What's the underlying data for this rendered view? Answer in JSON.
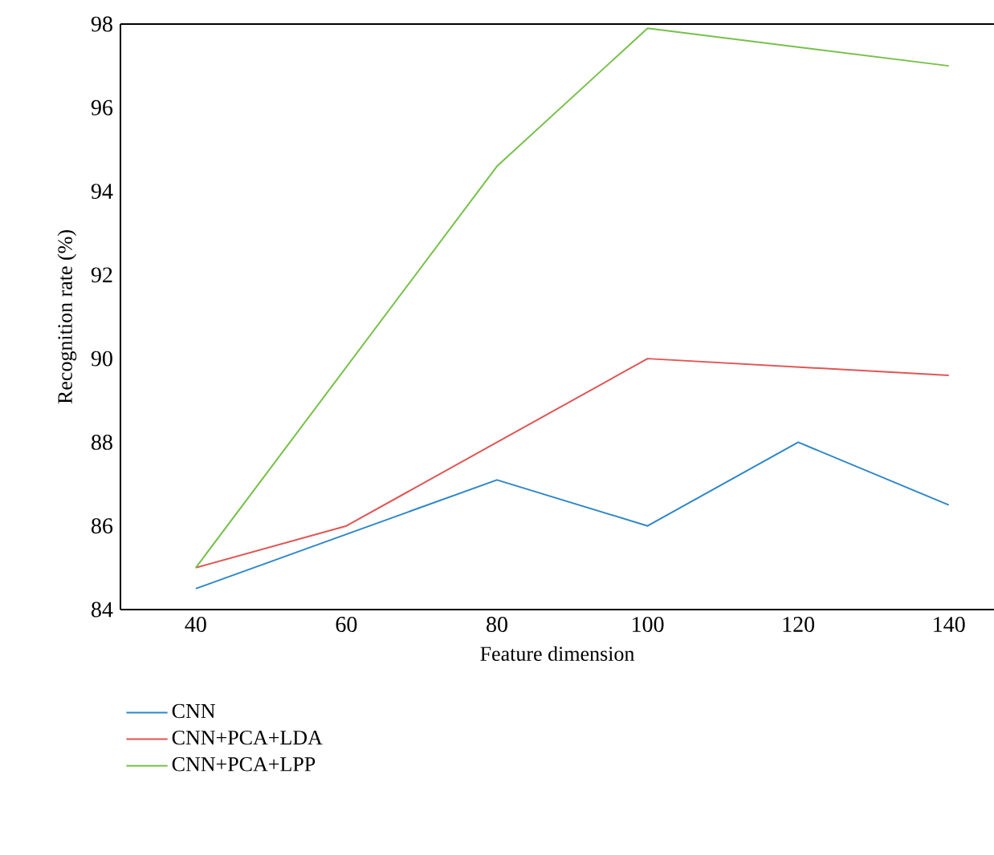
{
  "chart_data": {
    "type": "line",
    "xlabel": "Feature dimension",
    "ylabel": "Recognition rate (%)",
    "xlim": [
      30,
      146
    ],
    "xticks": [
      40,
      60,
      80,
      100,
      120,
      140
    ],
    "ylim": [
      84,
      98
    ],
    "yticks": [
      84,
      86,
      88,
      90,
      92,
      94,
      96,
      98
    ],
    "grid": false,
    "legend": "bottom left",
    "marker": "none",
    "line_style": "solid",
    "series": [
      {
        "name": "CNN",
        "color": "#2e86c8",
        "x": [
          40,
          60,
          80,
          100,
          120,
          140
        ],
        "values": [
          84.5,
          85.8,
          87.1,
          86.0,
          88.0,
          86.5
        ]
      },
      {
        "name": "CNN+PCA+LDA",
        "color": "#e05555",
        "x": [
          40,
          60,
          80,
          100,
          140
        ],
        "values": [
          85.0,
          86.0,
          88.0,
          90.0,
          89.6
        ]
      },
      {
        "name": "CNN+PCA+LPP",
        "color": "#77c04a",
        "x": [
          40,
          80,
          100,
          140
        ],
        "values": [
          85.0,
          94.6,
          97.9,
          97.0
        ]
      }
    ]
  }
}
